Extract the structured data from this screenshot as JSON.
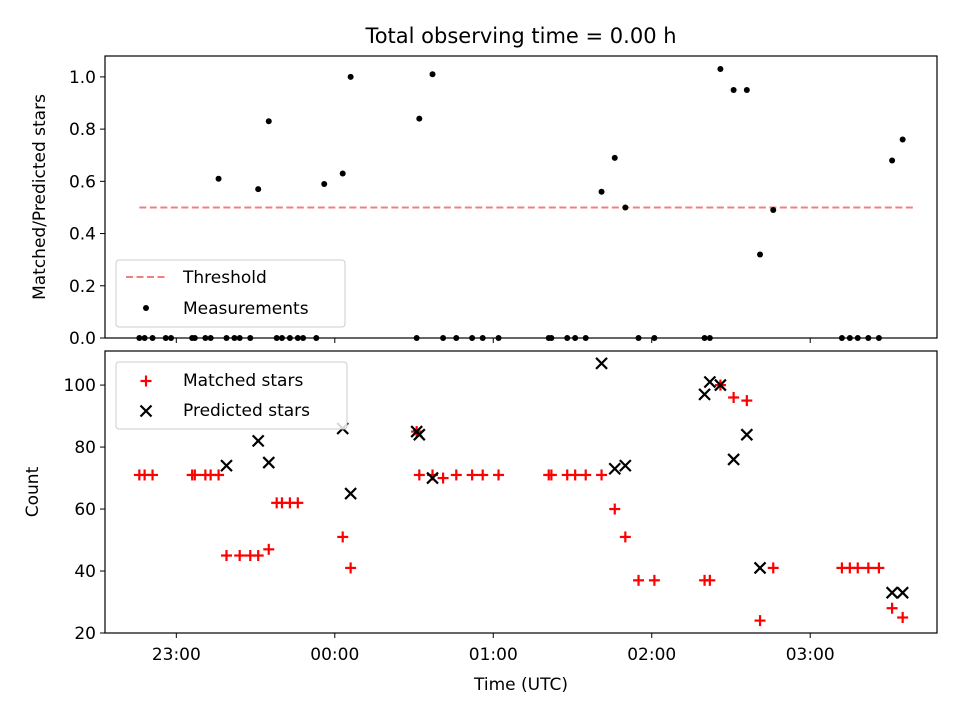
{
  "chart_data": [
    {
      "type": "scatter",
      "title": "Total observing time = 0.00 h",
      "xlabel": "",
      "ylabel": "Matched/Predicted stars",
      "ylim": [
        0,
        1.08
      ],
      "yticks": [
        0.0,
        0.2,
        0.4,
        0.6,
        0.8,
        1.0
      ],
      "ytick_labels": [
        "0.0",
        "0.2",
        "0.4",
        "0.6",
        "0.8",
        "1.0"
      ],
      "threshold": {
        "name": "Threshold",
        "value": 0.5,
        "x_start": "22:46",
        "x_end": "03:39",
        "color": "#f08080"
      },
      "legend": {
        "placement": "lower-left",
        "entries": [
          "Threshold",
          "Measurements"
        ]
      },
      "series": [
        {
          "name": "Measurements",
          "color": "#000000",
          "x": [
            "22:46",
            "22:48",
            "22:51",
            "22:56",
            "22:58",
            "23:06",
            "23:07",
            "23:11",
            "23:13",
            "23:16",
            "23:19",
            "23:22",
            "23:24",
            "23:28",
            "23:31",
            "23:35",
            "23:38",
            "23:40",
            "23:43",
            "23:46",
            "23:48",
            "23:53",
            "23:56",
            "24:03",
            "24:06",
            "24:31",
            "24:32",
            "24:37",
            "24:41",
            "24:46",
            "24:52",
            "24:56",
            "25:02",
            "25:21",
            "25:22",
            "25:28",
            "25:31",
            "25:35",
            "25:41",
            "25:46",
            "25:50",
            "25:55",
            "26:01",
            "26:20",
            "26:22",
            "26:26",
            "26:31",
            "26:36",
            "26:41",
            "26:46",
            "27:12",
            "27:15",
            "27:18",
            "27:22",
            "27:26",
            "27:31",
            "27:35"
          ],
          "y": [
            0,
            0,
            0,
            0,
            0,
            0,
            0,
            0,
            0,
            0.61,
            0,
            0,
            0,
            0,
            0.57,
            0.83,
            0,
            0,
            0,
            0,
            0,
            0,
            0.59,
            0.63,
            1.0,
            0,
            0.84,
            1.01,
            0,
            0,
            0,
            0,
            0,
            0,
            0,
            0,
            0,
            0,
            0.56,
            0.69,
            0.5,
            0,
            0,
            0,
            0,
            1.03,
            0.95,
            0.95,
            0.32,
            0.49,
            0,
            0,
            0,
            0,
            0,
            0.68,
            0.76
          ]
        }
      ]
    },
    {
      "type": "scatter",
      "title": "",
      "xlabel": "Time (UTC)",
      "ylabel": "Count",
      "xlim": [
        "22:33",
        "03:48"
      ],
      "xticks": [
        "23:00",
        "00:00",
        "01:00",
        "02:00",
        "03:00"
      ],
      "ylim": [
        20,
        111
      ],
      "yticks": [
        20,
        40,
        60,
        80,
        100
      ],
      "legend": {
        "placement": "upper-left",
        "entries": [
          "Matched stars",
          "Predicted stars"
        ]
      },
      "series": [
        {
          "name": "Matched stars",
          "marker": "+",
          "color": "#ff0000",
          "x": [
            "22:46",
            "22:48",
            "22:51",
            "23:06",
            "23:07",
            "23:11",
            "23:13",
            "23:16",
            "23:19",
            "23:24",
            "23:28",
            "23:31",
            "23:35",
            "23:38",
            "23:40",
            "23:43",
            "23:46",
            "24:03",
            "24:06",
            "24:31",
            "24:32",
            "24:37",
            "24:41",
            "24:46",
            "24:52",
            "24:56",
            "25:02",
            "25:21",
            "25:22",
            "25:28",
            "25:31",
            "25:35",
            "25:41",
            "25:46",
            "25:50",
            "25:55",
            "26:01",
            "26:20",
            "26:22",
            "26:26",
            "26:31",
            "26:36",
            "26:41",
            "26:46",
            "27:12",
            "27:15",
            "27:18",
            "27:22",
            "27:26",
            "27:31",
            "27:35"
          ],
          "y": [
            71,
            71,
            71,
            71,
            71,
            71,
            71,
            71,
            45,
            45,
            45,
            45,
            47,
            62,
            62,
            62,
            62,
            51,
            41,
            85,
            71,
            71,
            70,
            71,
            71,
            71,
            71,
            71,
            71,
            71,
            71,
            71,
            71,
            60,
            51,
            37,
            37,
            37,
            37,
            100,
            96,
            95,
            24,
            41,
            41,
            41,
            41,
            41,
            41,
            28,
            25
          ]
        },
        {
          "name": "Predicted stars",
          "marker": "x",
          "color": "#000000",
          "x": [
            "23:19",
            "23:31",
            "23:35",
            "24:03",
            "24:06",
            "24:31",
            "24:32",
            "24:37",
            "25:41",
            "25:46",
            "25:50",
            "26:20",
            "26:22",
            "26:26",
            "26:31",
            "26:36",
            "26:41",
            "27:31",
            "27:35"
          ],
          "y": [
            74,
            82,
            75,
            86,
            65,
            85,
            84,
            70,
            107,
            73,
            74,
            97,
            101,
            100,
            76,
            84,
            41,
            33,
            33
          ]
        }
      ]
    }
  ]
}
